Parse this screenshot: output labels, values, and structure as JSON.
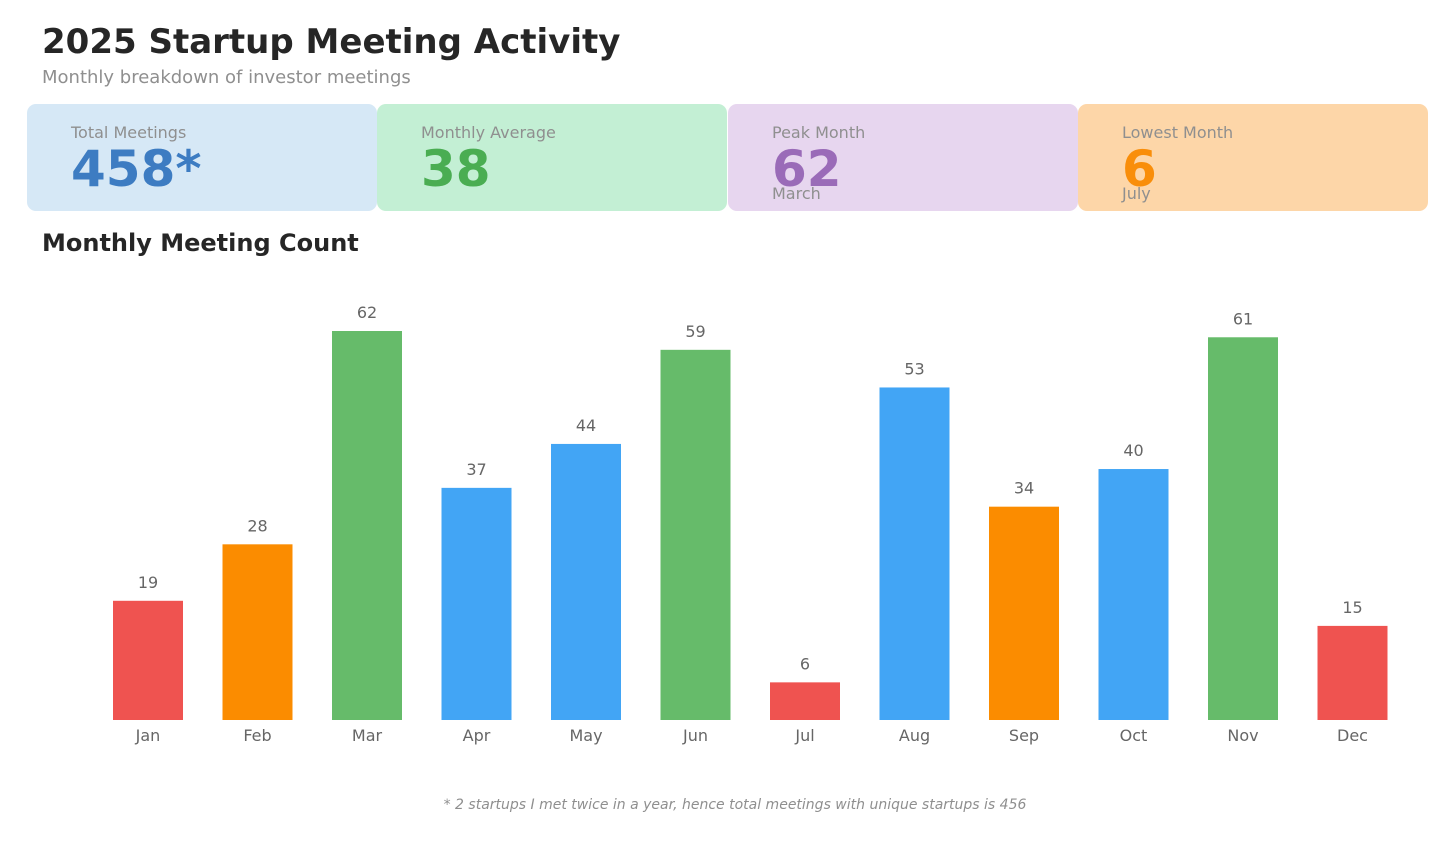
{
  "header": {
    "title": "2025 Startup Meeting Activity",
    "subtitle": "Monthly breakdown of investor meetings"
  },
  "stats": [
    {
      "label": "Total Meetings",
      "value": "458*",
      "sub": "",
      "bg": "#d6e8f6",
      "color": "#3d7cc2"
    },
    {
      "label": "Monthly Average",
      "value": "38",
      "sub": "",
      "bg": "#c3efd4",
      "color": "#4aad52"
    },
    {
      "label": "Peak Month",
      "value": "62",
      "sub": "March",
      "bg": "#e7d6ef",
      "color": "#9a6bb8"
    },
    {
      "label": "Lowest Month",
      "value": "6",
      "sub": "July",
      "bg": "#fdd6a8",
      "color": "#f98e0a"
    }
  ],
  "section": {
    "title": "Monthly Meeting Count"
  },
  "colors": {
    "red": "#ef5350",
    "orange": "#fb8c00",
    "green": "#66bb6a",
    "blue": "#42a5f5",
    "label": "#666666",
    "tick": "#666666"
  },
  "chart_data": {
    "type": "bar",
    "title": "Monthly Meeting Count",
    "categories": [
      "Jan",
      "Feb",
      "Mar",
      "Apr",
      "May",
      "Jun",
      "Jul",
      "Aug",
      "Sep",
      "Oct",
      "Nov",
      "Dec"
    ],
    "values": [
      19,
      28,
      62,
      37,
      44,
      59,
      6,
      53,
      34,
      40,
      61,
      15
    ],
    "bar_colors": [
      "red",
      "orange",
      "green",
      "blue",
      "blue",
      "green",
      "red",
      "blue",
      "orange",
      "blue",
      "green",
      "red"
    ],
    "data_labels": true,
    "grid": false,
    "ylim": [
      0,
      62
    ]
  },
  "footnote": "* 2 startups I met twice in a year, hence total meetings with unique startups is 456"
}
